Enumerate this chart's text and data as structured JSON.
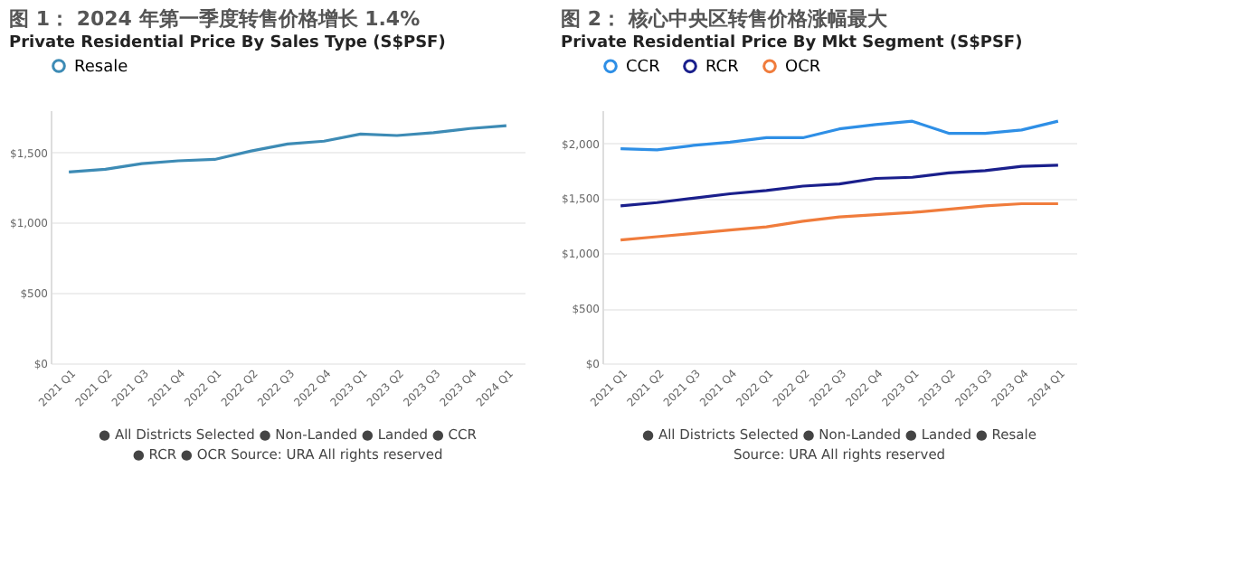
{
  "chart_data": [
    {
      "type": "line",
      "title": "图 1： 2024 年第一季度转售价格增长 1.4%",
      "subtitle": "Private Residential Price By Sales Type (S$PSF)",
      "categories": [
        "2021 Q1",
        "2021 Q2",
        "2021 Q3",
        "2021 Q4",
        "2022 Q1",
        "2022 Q2",
        "2022 Q3",
        "2022 Q4",
        "2023 Q1",
        "2023 Q2",
        "2023 Q3",
        "2023 Q4",
        "2024 Q1"
      ],
      "series": [
        {
          "name": "Resale",
          "color": "#3d8bb5",
          "values": [
            1360,
            1380,
            1420,
            1440,
            1450,
            1510,
            1560,
            1580,
            1630,
            1620,
            1640,
            1670,
            1690
          ]
        }
      ],
      "ylim": [
        0,
        1800
      ],
      "yticks": [
        {
          "value": 0,
          "label": "$0"
        },
        {
          "value": 500,
          "label": "$500"
        },
        {
          "value": 1000,
          "label": "$1,000"
        },
        {
          "value": 1500,
          "label": "$1,500"
        }
      ],
      "grid": "y",
      "legend": "top",
      "marker": "none",
      "line_style": "solid",
      "annotations": [
        "● All Districts Selected",
        "● Non-Landed",
        "● Landed",
        "● CCR",
        "● RCR",
        "● OCR",
        "Source: URA",
        "All rights reserved"
      ]
    },
    {
      "type": "line",
      "title": "图 2： 核心中央区转售价格涨幅最大",
      "subtitle": "Private Residential Price By Mkt Segment (S$PSF)",
      "categories": [
        "2021 Q1",
        "2021 Q2",
        "2021 Q3",
        "2021 Q4",
        "2022 Q1",
        "2022 Q2",
        "2022 Q3",
        "2022 Q4",
        "2023 Q1",
        "2023 Q2",
        "2023 Q3",
        "2023 Q4",
        "2024 Q1"
      ],
      "series": [
        {
          "name": "CCR",
          "color": "#2e8fe6",
          "values": [
            1950,
            1940,
            1980,
            2010,
            2050,
            2050,
            2130,
            2170,
            2200,
            2090,
            2090,
            2120,
            2200
          ]
        },
        {
          "name": "RCR",
          "color": "#1a1f8c",
          "values": [
            1430,
            1460,
            1500,
            1540,
            1570,
            1610,
            1630,
            1680,
            1690,
            1730,
            1750,
            1790,
            1800
          ]
        },
        {
          "name": "OCR",
          "color": "#f07c3c",
          "values": [
            1120,
            1150,
            1180,
            1210,
            1240,
            1290,
            1330,
            1350,
            1370,
            1400,
            1430,
            1450,
            1450
          ]
        }
      ],
      "ylim": [
        0,
        2300
      ],
      "yticks": [
        {
          "value": 0,
          "label": "$0"
        },
        {
          "value": 500,
          "label": "$500"
        },
        {
          "value": 1000,
          "label": "$1,000"
        },
        {
          "value": 1500,
          "label": "$1,500"
        },
        {
          "value": 2000,
          "label": "$2,000"
        }
      ],
      "grid": "y",
      "legend": "top",
      "marker": "none",
      "line_style": "solid",
      "annotations": [
        "● All Districts Selected",
        "● Non-Landed",
        "● Landed",
        "● Resale",
        "Source: URA",
        "All rights reserved"
      ]
    }
  ]
}
